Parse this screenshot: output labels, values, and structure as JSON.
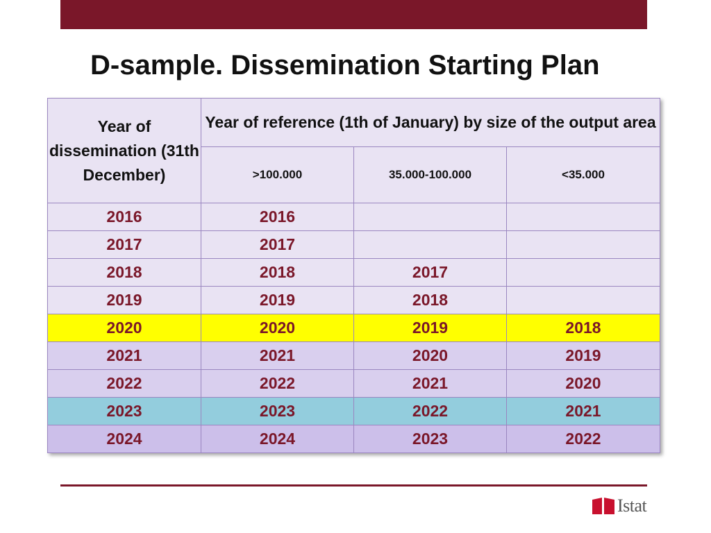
{
  "title": "D-sample. Dissemination Starting Plan",
  "table": {
    "year_header": "Year of dissemination (31th December)",
    "group_header": "Year of reference (1th of January) by size of the output area",
    "size_headers": [
      ">100.000",
      "35.000-100.000",
      "<35.000"
    ],
    "rows": [
      {
        "style": "light",
        "cells": [
          "2016",
          "2016",
          "",
          ""
        ]
      },
      {
        "style": "light",
        "cells": [
          "2017",
          "2017",
          "",
          ""
        ]
      },
      {
        "style": "light",
        "cells": [
          "2018",
          "2018",
          "2017",
          ""
        ]
      },
      {
        "style": "light",
        "cells": [
          "2019",
          "2019",
          "2018",
          ""
        ]
      },
      {
        "style": "yellow",
        "cells": [
          "2020",
          "2020",
          "2019",
          "2018"
        ]
      },
      {
        "style": "mid",
        "cells": [
          "2021",
          "2021",
          "2020",
          "2019"
        ]
      },
      {
        "style": "mid",
        "cells": [
          "2022",
          "2022",
          "2021",
          "2020"
        ]
      },
      {
        "style": "cyan",
        "cells": [
          "2023",
          "2023",
          "2022",
          "2021"
        ]
      },
      {
        "style": "purple",
        "cells": [
          "2024",
          "2024",
          "2023",
          "2022"
        ]
      }
    ]
  },
  "logo": {
    "text": "Istat",
    "icon": "istat-logo-icon",
    "color": "#c8102e"
  },
  "colors": {
    "brand": "#7a1729",
    "highlight_yellow": "#ffff00",
    "highlight_cyan": "#93cddd",
    "row_light": "#e9e3f3",
    "row_mid": "#d9cfee",
    "row_purple": "#ccbfea"
  }
}
